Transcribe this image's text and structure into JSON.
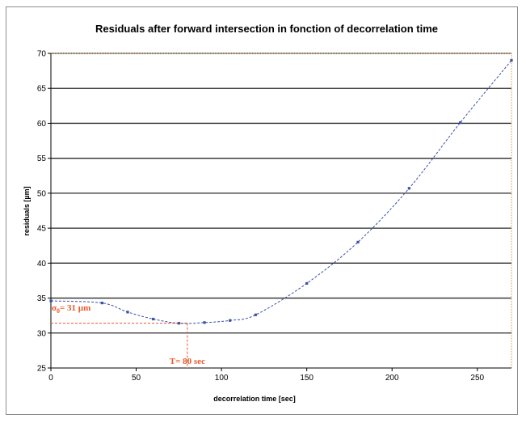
{
  "chart_data": {
    "type": "line",
    "title": "Residuals after forward intersection in fonction of decorrelation time",
    "xlabel": "decorrelation time [sec]",
    "ylabel": "residuals [µm]",
    "xlim": [
      0,
      270
    ],
    "ylim": [
      25,
      70
    ],
    "x_ticks": [
      0,
      50,
      100,
      150,
      200,
      250
    ],
    "y_ticks": [
      25,
      30,
      35,
      40,
      45,
      50,
      55,
      60,
      65,
      70
    ],
    "grid": "horizontal",
    "series": [
      {
        "x": [
          0,
          30,
          45,
          60,
          75,
          90,
          105,
          120,
          150,
          180,
          210,
          240,
          270
        ],
        "y": [
          34.6,
          34.3,
          33.0,
          32.0,
          31.4,
          31.5,
          31.8,
          32.6,
          37.1,
          43.0,
          50.7,
          60.1,
          69.0
        ],
        "color": "#3a4fa8",
        "style": "dashed",
        "marker": "dot"
      }
    ],
    "annotations": [
      {
        "text_main": "σ",
        "text_sub": "0",
        "text_rest": "= 31 µm",
        "x": 0,
        "y": 31.4,
        "color": "#e8582a"
      },
      {
        "text": "T= 80 sec",
        "x": 80,
        "y": 25,
        "color": "#e8582a"
      }
    ],
    "annotation_line": {
      "x": 80,
      "y": 31.4,
      "color": "#e8582a"
    }
  }
}
